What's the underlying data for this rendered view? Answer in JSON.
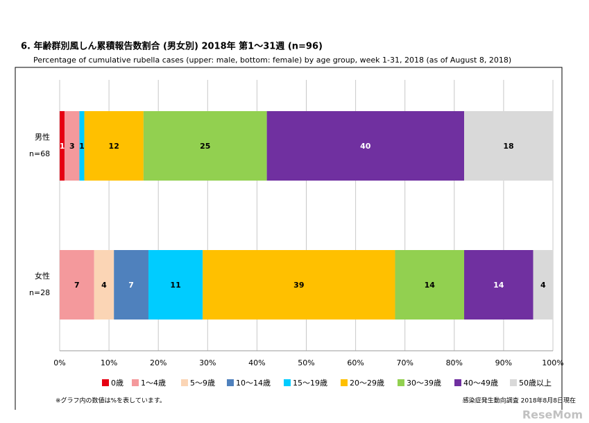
{
  "chart_data": {
    "type": "bar",
    "orientation": "horizontal",
    "stacked": true,
    "title": "6. 年齢群別風しん累積報告数割合 (男女別)  2018年 第1～31週 (n=96)",
    "subtitle": "Percentage of cumulative rubella cases (upper: male, bottom: female) by age group, week 1-31, 2018 (as of August 8, 2018)",
    "categories": [
      "男性",
      "女性"
    ],
    "category_notes": [
      "n=68",
      "n=28"
    ],
    "series": [
      {
        "name": "0歳",
        "color": "#e60012",
        "values": [
          1,
          0
        ]
      },
      {
        "name": "1～4歳",
        "color": "#f4999c",
        "values": [
          3,
          7
        ]
      },
      {
        "name": "5～9歳",
        "color": "#fbd5b5",
        "values": [
          0,
          4
        ]
      },
      {
        "name": "10～14歳",
        "color": "#4f81bd",
        "values": [
          0,
          7
        ]
      },
      {
        "name": "15～19歳",
        "color": "#00ccff",
        "values": [
          1,
          11
        ]
      },
      {
        "name": "20～29歳",
        "color": "#ffc000",
        "values": [
          12,
          39
        ]
      },
      {
        "name": "30～39歳",
        "color": "#92d050",
        "values": [
          25,
          14
        ]
      },
      {
        "name": "40～49歳",
        "color": "#7030a0",
        "values": [
          40,
          14
        ]
      },
      {
        "name": "50歳以上",
        "color": "#d9d9d9",
        "values": [
          18,
          4
        ]
      }
    ],
    "xlim": [
      0,
      100
    ],
    "xticks": [
      {
        "value": 0,
        "label": "0%"
      },
      {
        "value": 10,
        "label": "10%"
      },
      {
        "value": 20,
        "label": "20%"
      },
      {
        "value": 30,
        "label": "30%"
      },
      {
        "value": 40,
        "label": "40%"
      },
      {
        "value": 50,
        "label": "50%"
      },
      {
        "value": 60,
        "label": "60%"
      },
      {
        "value": 70,
        "label": "70%"
      },
      {
        "value": 80,
        "label": "80%"
      },
      {
        "value": 90,
        "label": "90%"
      },
      {
        "value": 100,
        "label": "100%"
      }
    ],
    "grid": true,
    "legend": "bottom",
    "footnote": "※グラフ内の数値は%を表しています。",
    "source": "感染症発生動向調査 2018年8月8日現在",
    "watermark": "ReseMom"
  }
}
